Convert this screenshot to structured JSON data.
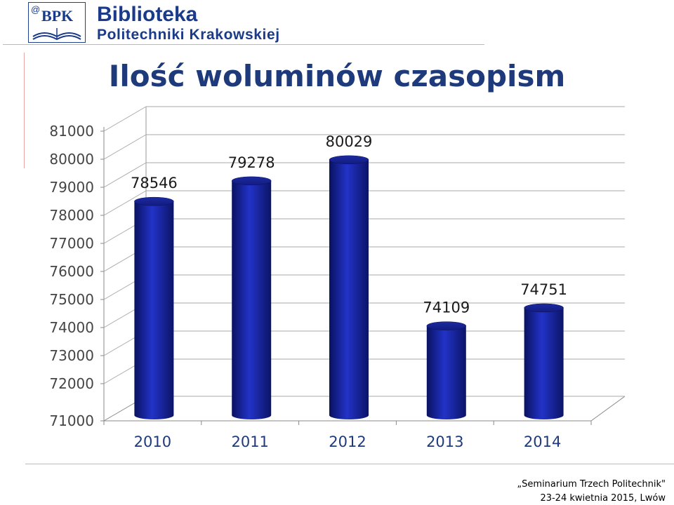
{
  "header": {
    "logo_text": "BPK",
    "logo_at": "@",
    "brand_line1": "Biblioteka",
    "brand_line2": "Politechniki Krakowskiej"
  },
  "page_title": "Ilość woluminów czasopism",
  "footer": {
    "line1": "„Seminarium Trzech Politechnik\"",
    "line2": "23-24 kwietnia 2015, Lwów"
  },
  "colors": {
    "bar": "#1b2aa8",
    "bar_dark": "#0c1466",
    "title": "#1f3a7a",
    "brand": "#1a3a8a",
    "rule": "#e8a6a6"
  },
  "chart_data": {
    "type": "bar",
    "title": "",
    "categories": [
      "2010",
      "2011",
      "2012",
      "2013",
      "2014"
    ],
    "values": [
      78546,
      79278,
      80029,
      74109,
      74751
    ],
    "data_labels": [
      "78546",
      "79278",
      "80029",
      "74109",
      "74751"
    ],
    "yticks": [
      "71000",
      "72000",
      "73000",
      "74000",
      "75000",
      "76000",
      "77000",
      "78000",
      "79000",
      "80000",
      "81000"
    ],
    "ylim": [
      71000,
      81000
    ],
    "grid": true,
    "legend": "none",
    "style": "3d-cylinder"
  }
}
